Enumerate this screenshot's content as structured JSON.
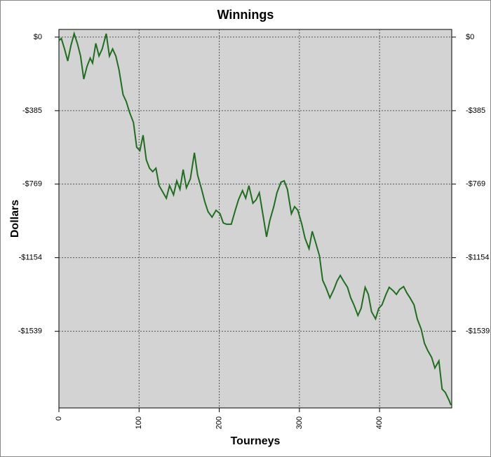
{
  "chart_data": {
    "type": "line",
    "title": "Winnings",
    "x_label": "Tourneys",
    "y_label": "Dollars",
    "x": [
      0,
      3,
      7,
      11,
      15,
      19,
      23,
      27,
      31,
      35,
      39,
      42,
      46,
      50,
      54,
      59,
      63,
      67,
      71,
      75,
      80,
      84,
      88,
      93,
      97,
      101,
      105,
      109,
      113,
      117,
      121,
      125,
      130,
      134,
      138,
      143,
      147,
      151,
      155,
      159,
      164,
      169,
      173,
      178,
      182,
      186,
      191,
      196,
      201,
      205,
      209,
      215,
      220,
      224,
      229,
      233,
      237,
      242,
      246,
      250,
      255,
      259,
      263,
      268,
      272,
      277,
      281,
      285,
      290,
      294,
      298,
      303,
      307,
      312,
      316,
      320,
      325,
      329,
      333,
      338,
      343,
      347,
      351,
      355,
      360,
      364,
      368,
      373,
      377,
      382,
      386,
      390,
      395,
      399,
      403,
      408,
      412,
      417,
      421,
      425,
      430,
      434,
      438,
      443,
      447,
      452,
      456,
      460,
      465,
      469,
      474,
      478,
      482,
      487,
      489
    ],
    "series": [
      {
        "name": "Winnings",
        "color": "#1f6e1f",
        "values": [
          -18,
          -7,
          -62,
          -125,
          -44,
          18,
          -33,
          -99,
          -220,
          -154,
          -110,
          -136,
          -33,
          -99,
          -62,
          18,
          -99,
          -62,
          -99,
          -172,
          -301,
          -337,
          -392,
          -447,
          -576,
          -594,
          -513,
          -642,
          -686,
          -704,
          -686,
          -777,
          -814,
          -843,
          -777,
          -825,
          -752,
          -796,
          -693,
          -788,
          -741,
          -605,
          -722,
          -796,
          -862,
          -913,
          -942,
          -906,
          -924,
          -972,
          -979,
          -979,
          -906,
          -851,
          -803,
          -843,
          -777,
          -869,
          -851,
          -814,
          -942,
          -1045,
          -961,
          -887,
          -814,
          -759,
          -752,
          -796,
          -924,
          -887,
          -906,
          -979,
          -1052,
          -1107,
          -1016,
          -1071,
          -1144,
          -1272,
          -1309,
          -1364,
          -1320,
          -1276,
          -1247,
          -1276,
          -1309,
          -1364,
          -1401,
          -1456,
          -1419,
          -1309,
          -1346,
          -1437,
          -1474,
          -1419,
          -1401,
          -1346,
          -1309,
          -1327,
          -1346,
          -1320,
          -1305,
          -1338,
          -1364,
          -1401,
          -1474,
          -1529,
          -1602,
          -1639,
          -1676,
          -1731,
          -1694,
          -1841,
          -1859,
          -1903,
          -1925
        ]
      }
    ],
    "xlim": [
      0,
      490
    ],
    "xticks": [
      0,
      100,
      200,
      300,
      400
    ],
    "ylim": [
      -1940,
      40
    ],
    "yticks": [
      {
        "value": 0,
        "label": "$0"
      },
      {
        "value": -385,
        "label": "-$385"
      },
      {
        "value": -769,
        "label": "-$769"
      },
      {
        "value": -1154,
        "label": "-$1154"
      },
      {
        "value": -1539,
        "label": "-$1539"
      }
    ],
    "grid": true
  }
}
